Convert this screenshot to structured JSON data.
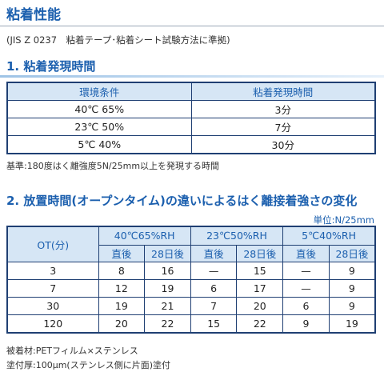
{
  "header": {
    "title": "粘着性能",
    "subtitle": "(JIS Z 0237　粘着テープ･粘着シート試験方法に準拠)"
  },
  "section1": {
    "title": "1. 粘着発現時間",
    "table": {
      "columns": [
        "環境条件",
        "粘着発現時間"
      ],
      "rows": [
        [
          "40℃ 65%",
          "3分"
        ],
        [
          "23℃ 50%",
          "7分"
        ],
        [
          "5℃ 40%",
          "30分"
        ]
      ]
    },
    "note": "基準:180度はく離強度5N/25mm以上を発現する時間"
  },
  "section2": {
    "title": "2. 放置時間(オープンタイム)の違いによるはく離接着強さの変化",
    "unit": "単位:N/25mm",
    "table": {
      "row_header": "OT(分)",
      "groups": [
        "40℃65%RH",
        "23℃50%RH",
        "5℃40%RH"
      ],
      "subheaders": [
        "直後",
        "28日後",
        "直後",
        "28日後",
        "直後",
        "28日後"
      ],
      "rows": [
        [
          3,
          8,
          16,
          "—",
          15,
          "—",
          9
        ],
        [
          7,
          12,
          19,
          6,
          17,
          "—",
          9
        ],
        [
          30,
          19,
          21,
          7,
          20,
          6,
          9
        ],
        [
          120,
          20,
          22,
          15,
          22,
          9,
          19
        ]
      ]
    },
    "notes": [
      "被着材:PETフィルム×ステンレス",
      "塗付厚:100μm(ステンレス側に片面)塗付"
    ]
  }
}
